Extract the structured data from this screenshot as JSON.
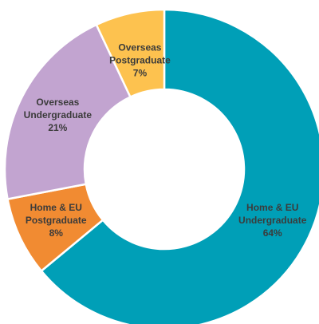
{
  "chart_data": {
    "type": "pie",
    "donut": true,
    "categories": [
      "Home & EU Undergraduate",
      "Home & EU Postgraduate",
      "Overseas Undergraduate",
      "Overseas Postgraduate"
    ],
    "values": [
      64,
      8,
      21,
      7
    ],
    "value_labels": [
      "64%",
      "8%",
      "21%",
      "7%"
    ],
    "colors": [
      "#009fb7",
      "#f18b32",
      "#c2a4d0",
      "#fdc24f"
    ],
    "label_lines": [
      [
        "Home & EU",
        "Undergraduate"
      ],
      [
        "Home & EU",
        "Postgraduate"
      ],
      [
        "Overseas",
        "Undergraduate"
      ],
      [
        "Overseas",
        "Postgraduate"
      ]
    ]
  }
}
